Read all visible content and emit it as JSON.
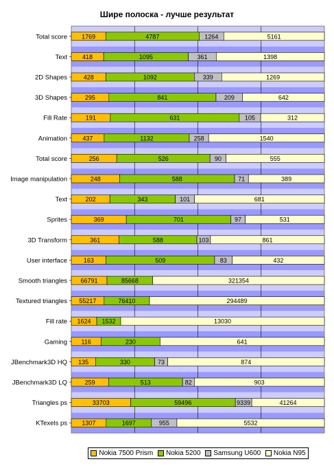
{
  "chart_data": {
    "type": "bar",
    "orientation": "horizontal",
    "stacking": "100%",
    "title": "Шире полоска - лучше результат",
    "xlabel": "",
    "ylabel": "",
    "grid": true,
    "legend_position": "bottom",
    "categories": [
      "Total score",
      "Text",
      "2D Shapes",
      "3D Shapes",
      "Fill Rate",
      "Animation",
      "Total score",
      "Image manipulation",
      "Text",
      "Sprites",
      "3D Transform",
      "User interface",
      "Smooth triangles",
      "Textured triangles",
      "Fill rate",
      "Gaming",
      "JBenchmark3D HQ",
      "JBenchmark3D LQ",
      "Triangles ps",
      "KTexels ps"
    ],
    "series": [
      {
        "name": "Nokia 7500 Prism",
        "color": "#ffc000",
        "values": [
          1769,
          418,
          428,
          295,
          191,
          437,
          256,
          248,
          202,
          369,
          361,
          163,
          66791,
          55217,
          1624,
          116,
          135,
          259,
          33703,
          1307
        ]
      },
      {
        "name": "Nokia 5200",
        "color": "#8cc800",
        "values": [
          4787,
          1095,
          1092,
          841,
          631,
          1132,
          526,
          588,
          343,
          701,
          588,
          509,
          85668,
          76410,
          1532,
          230,
          330,
          513,
          59496,
          1697
        ]
      },
      {
        "name": "Samsung U600",
        "color": "#c0c0c0",
        "values": [
          1264,
          361,
          339,
          209,
          105,
          258,
          90,
          71,
          101,
          97,
          103,
          83,
          null,
          null,
          null,
          null,
          73,
          82,
          9339,
          955
        ]
      },
      {
        "name": "Nokia N95",
        "color": "#ffffcc",
        "values": [
          5161,
          1398,
          1269,
          642,
          312,
          1540,
          555,
          389,
          681,
          531,
          861,
          432,
          321354,
          294489,
          13030,
          641,
          874,
          903,
          41264,
          5532
        ]
      }
    ],
    "plot_background": "#9999ff",
    "alt_row_background": "#ccccff"
  }
}
